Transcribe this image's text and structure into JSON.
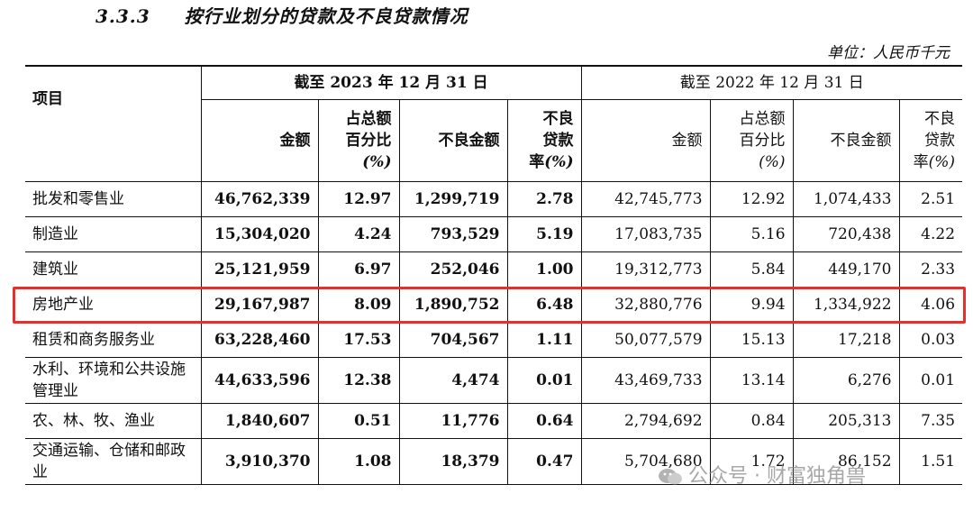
{
  "section": {
    "number": "3.3.3",
    "title": "按行业划分的贷款及不良贷款情况"
  },
  "unit": "单位：人民币千元",
  "header": {
    "item": "项目",
    "period_2023": "截至 2023 年 12 月 31 日",
    "period_2022": "截至 2022 年 12 月 31 日",
    "columns": [
      "金额",
      "占总额百分比(%)",
      "不良金额",
      "不良贷款率(%)"
    ]
  },
  "rows": [
    {
      "name": "批发和零售业",
      "y2023": [
        "46,762,339",
        "12.97",
        "1,299,719",
        "2.78"
      ],
      "y2022": [
        "42,745,773",
        "12.92",
        "1,074,433",
        "2.51"
      ]
    },
    {
      "name": "制造业",
      "y2023": [
        "15,304,020",
        "4.24",
        "793,529",
        "5.19"
      ],
      "y2022": [
        "17,083,735",
        "5.16",
        "720,438",
        "4.22"
      ]
    },
    {
      "name": "建筑业",
      "y2023": [
        "25,121,959",
        "6.97",
        "252,046",
        "1.00"
      ],
      "y2022": [
        "19,312,773",
        "5.84",
        "449,170",
        "2.33"
      ]
    },
    {
      "name": "房地产业",
      "y2023": [
        "29,167,987",
        "8.09",
        "1,890,752",
        "6.48"
      ],
      "y2022": [
        "32,880,776",
        "9.94",
        "1,334,922",
        "4.06"
      ]
    },
    {
      "name": "租赁和商务服务业",
      "y2023": [
        "63,228,460",
        "17.53",
        "704,567",
        "1.11"
      ],
      "y2022": [
        "50,077,579",
        "15.13",
        "17,218",
        "0.03"
      ]
    },
    {
      "name": "水利、环境和公共设施管理业",
      "y2023": [
        "44,633,596",
        "12.38",
        "4,474",
        "0.01"
      ],
      "y2022": [
        "43,469,733",
        "13.14",
        "6,276",
        "0.01"
      ]
    },
    {
      "name": "农、林、牧、渔业",
      "y2023": [
        "1,840,607",
        "0.51",
        "11,776",
        "0.64"
      ],
      "y2022": [
        "2,794,692",
        "0.84",
        "205,313",
        "7.35"
      ]
    },
    {
      "name": "交通运输、仓储和邮政业",
      "y2023": [
        "3,910,370",
        "1.08",
        "18,379",
        "0.47"
      ],
      "y2022": [
        "5,704,680",
        "1.72",
        "86,152",
        "1.51"
      ]
    }
  ],
  "watermark": "公众号 · 财富独角兽",
  "colors": {
    "highlight": "#e5302b"
  }
}
